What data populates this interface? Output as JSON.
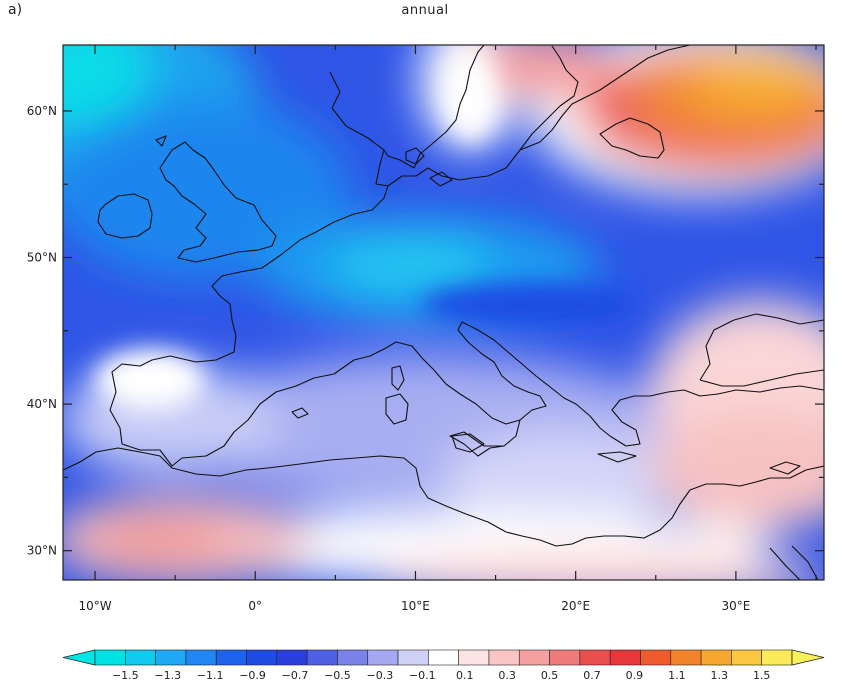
{
  "panel_label": "a)",
  "title": "annual",
  "extent": {
    "lon_min": -12,
    "lon_max": 35.5,
    "lat_min": 28,
    "lat_max": 64.5
  },
  "lat_ticks": [
    {
      "lat": 60,
      "label": "60°N"
    },
    {
      "lat": 50,
      "label": "50°N"
    },
    {
      "lat": 40,
      "label": "40°N"
    },
    {
      "lat": 30,
      "label": "30°N"
    }
  ],
  "lon_ticks": [
    {
      "lon": -10,
      "label": "10°W"
    },
    {
      "lon": 0,
      "label": "0°"
    },
    {
      "lon": 10,
      "label": "10°E"
    },
    {
      "lon": 20,
      "label": "20°E"
    },
    {
      "lon": 30,
      "label": "30°E"
    }
  ],
  "colorbar": {
    "labels": [
      "-1.5",
      "-1.3",
      "-1.1",
      "-0.9",
      "-0.7",
      "-0.5",
      "-0.3",
      "-0.1",
      "0.1",
      "0.3",
      "0.5",
      "0.7",
      "0.9",
      "1.1",
      "1.3",
      "1.5"
    ],
    "colors": [
      "#00e1e6",
      "#12c8ef",
      "#1fa8f5",
      "#1f86f2",
      "#1d64ea",
      "#1f4ce3",
      "#2a3fdc",
      "#4f60e4",
      "#7b83ea",
      "#a5a8f0",
      "#cfd0f7",
      "#ffffff",
      "#fde3e3",
      "#f9c5c5",
      "#f4a0a0",
      "#ef7a7a",
      "#e94f4f",
      "#e6373a",
      "#ee5b2c",
      "#f3832a",
      "#f7a730",
      "#f9c840",
      "#fcea5a"
    ],
    "extend_low_color": "#00e6e6",
    "extend_high_color": "#fcf05a"
  },
  "colors": {
    "frame": "#222222",
    "coastline": "#111111"
  }
}
